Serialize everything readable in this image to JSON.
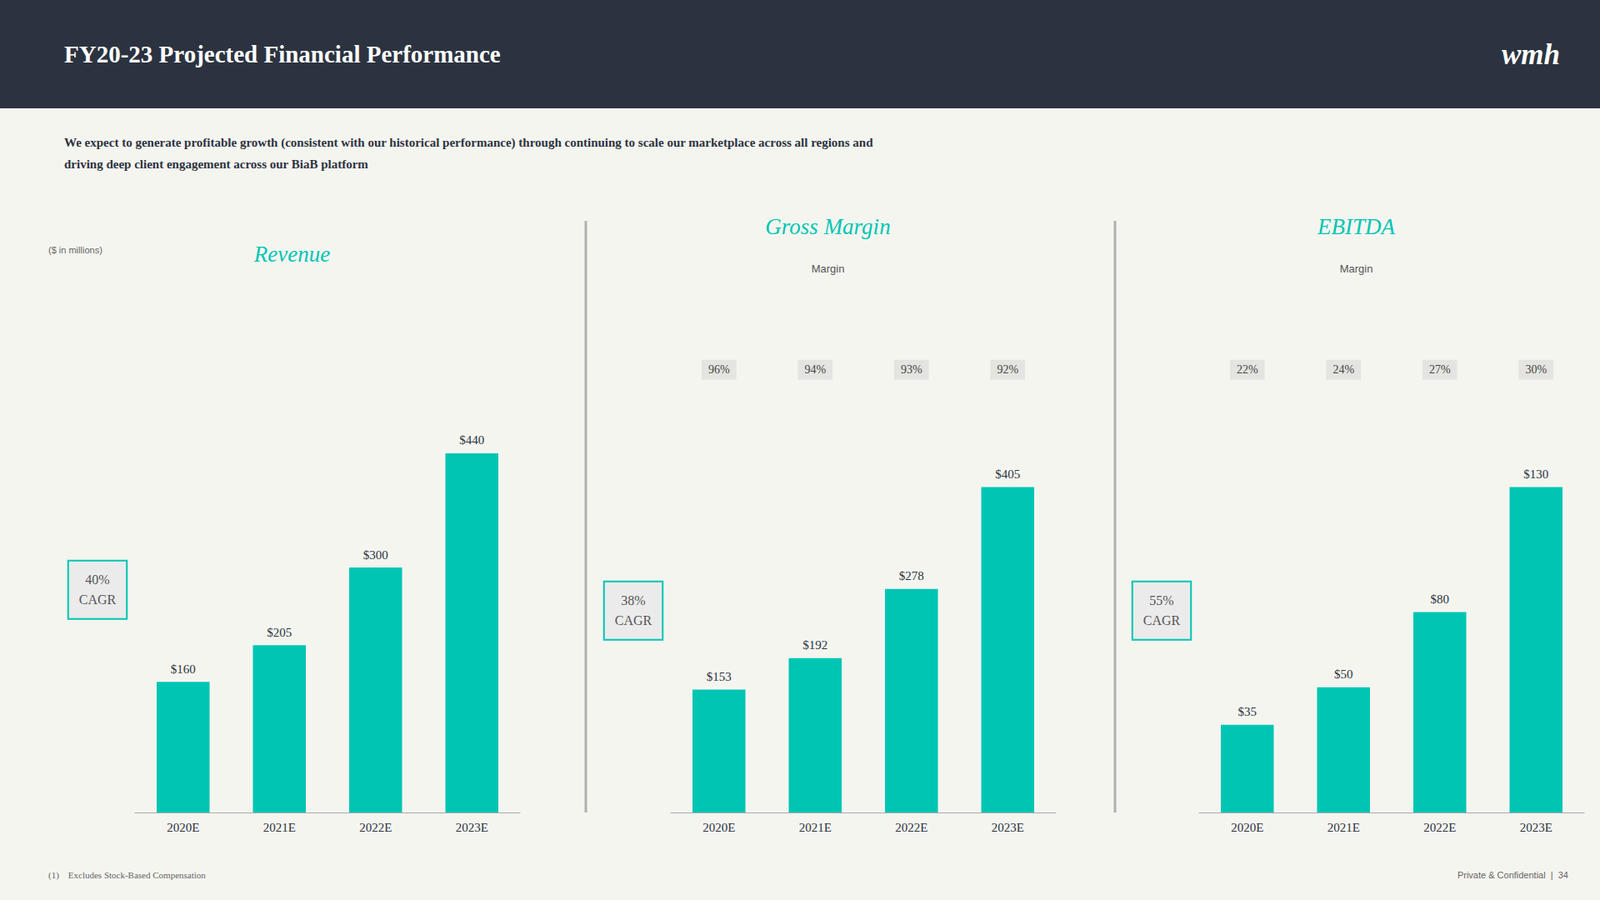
{
  "title": "FY20-23 Projected Financial Performance",
  "subtitle": "We expect to generate profitable growth (consistent with our historical performance) through continuing to scale our marketplace across all regions and\ndriving deep client engagement across our BiaB platform",
  "annotations": [
    "wmh",
    "($ in millions)",
    "(1)    Excludes Stock-Based Compensation",
    "Private & Confidential  |  34"
  ],
  "chart_data": [
    {
      "type": "bar",
      "title": "Revenue",
      "categories": [
        "2020E",
        "2021E",
        "2022E",
        "2023E"
      ],
      "values": [
        160,
        205,
        300,
        440
      ],
      "value_labels": [
        "$160",
        "$205",
        "$300",
        "$440"
      ],
      "data_labels": true,
      "color": "#00c5b3",
      "ylim": [
        0,
        638
      ],
      "grid": false,
      "tick_labels": "x",
      "annotations": [
        "40%\nCAGR"
      ]
    },
    {
      "type": "bar",
      "title": "Gross Margin",
      "categories": [
        "2020E",
        "2021E",
        "2022E",
        "2023E"
      ],
      "values": [
        153,
        192,
        278,
        405
      ],
      "value_labels": [
        "$153",
        "$192",
        "$278",
        "$405"
      ],
      "data_labels": true,
      "color": "#00c5b3",
      "ylim": [
        0,
        648
      ],
      "grid": false,
      "tick_labels": "x",
      "annotations": [
        "38%\nCAGR"
      ],
      "margin_title": "Margin",
      "margin_labels": [
        "96%",
        "94%",
        "93%",
        "92%"
      ]
    },
    {
      "type": "bar",
      "title": "EBITDA",
      "categories": [
        "2020E",
        "2021E",
        "2022E",
        "2023E"
      ],
      "values": [
        35,
        50,
        80,
        130
      ],
      "value_labels": [
        "$35",
        "$50",
        "$80",
        "$130"
      ],
      "data_labels": true,
      "color": "#00c5b3",
      "ylim": [
        0,
        208
      ],
      "grid": false,
      "tick_labels": "x",
      "annotations": [
        "55%\nCAGR"
      ],
      "margin_title": "Margin",
      "margin_labels": [
        "22%",
        "24%",
        "27%",
        "30%"
      ]
    }
  ]
}
